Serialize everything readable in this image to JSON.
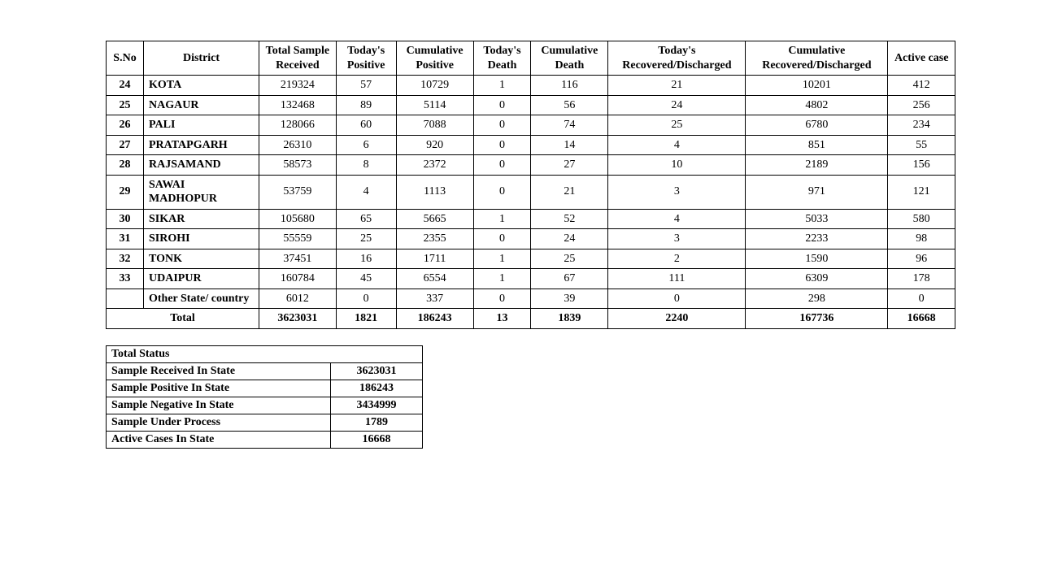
{
  "main_table": {
    "headers": {
      "sno": "S.No",
      "district": "District",
      "sample": "Total Sample Received",
      "tpos": "Today's Positive",
      "cpos": "Cumulative Positive",
      "tdeath": "Today's Death",
      "cdeath": "Cumulative Death",
      "trec": "Today's Recovered/Discharged",
      "crec": "Cumulative Recovered/Discharged",
      "active": "Active case"
    },
    "rows": [
      {
        "sno": "24",
        "district": "KOTA",
        "sample": "219324",
        "tpos": "57",
        "cpos": "10729",
        "tdeath": "1",
        "cdeath": "116",
        "trec": "21",
        "crec": "10201",
        "active": "412"
      },
      {
        "sno": "25",
        "district": "NAGAUR",
        "sample": "132468",
        "tpos": "89",
        "cpos": "5114",
        "tdeath": "0",
        "cdeath": "56",
        "trec": "24",
        "crec": "4802",
        "active": "256"
      },
      {
        "sno": "26",
        "district": "PALI",
        "sample": "128066",
        "tpos": "60",
        "cpos": "7088",
        "tdeath": "0",
        "cdeath": "74",
        "trec": "25",
        "crec": "6780",
        "active": "234"
      },
      {
        "sno": "27",
        "district": "PRATAPGARH",
        "sample": "26310",
        "tpos": "6",
        "cpos": "920",
        "tdeath": "0",
        "cdeath": "14",
        "trec": "4",
        "crec": "851",
        "active": "55"
      },
      {
        "sno": "28",
        "district": "RAJSAMAND",
        "sample": "58573",
        "tpos": "8",
        "cpos": "2372",
        "tdeath": "0",
        "cdeath": "27",
        "trec": "10",
        "crec": "2189",
        "active": "156"
      },
      {
        "sno": "29",
        "district": "SAWAI MADHOPUR",
        "sample": "53759",
        "tpos": "4",
        "cpos": "1113",
        "tdeath": "0",
        "cdeath": "21",
        "trec": "3",
        "crec": "971",
        "active": "121"
      },
      {
        "sno": "30",
        "district": "SIKAR",
        "sample": "105680",
        "tpos": "65",
        "cpos": "5665",
        "tdeath": "1",
        "cdeath": "52",
        "trec": "4",
        "crec": "5033",
        "active": "580"
      },
      {
        "sno": "31",
        "district": "SIROHI",
        "sample": "55559",
        "tpos": "25",
        "cpos": "2355",
        "tdeath": "0",
        "cdeath": "24",
        "trec": "3",
        "crec": "2233",
        "active": "98"
      },
      {
        "sno": "32",
        "district": "TONK",
        "sample": "37451",
        "tpos": "16",
        "cpos": "1711",
        "tdeath": "1",
        "cdeath": "25",
        "trec": "2",
        "crec": "1590",
        "active": "96"
      },
      {
        "sno": "33",
        "district": "UDAIPUR",
        "sample": "160784",
        "tpos": "45",
        "cpos": "6554",
        "tdeath": "1",
        "cdeath": "67",
        "trec": "111",
        "crec": "6309",
        "active": "178"
      },
      {
        "sno": "",
        "district": "Other State/ country",
        "sample": "6012",
        "tpos": "0",
        "cpos": "337",
        "tdeath": "0",
        "cdeath": "39",
        "trec": "0",
        "crec": "298",
        "active": "0"
      }
    ],
    "total": {
      "label": "Total",
      "sample": "3623031",
      "tpos": "1821",
      "cpos": "186243",
      "tdeath": "13",
      "cdeath": "1839",
      "trec": "2240",
      "crec": "167736",
      "active": "16668"
    }
  },
  "status_table": {
    "title": "Total Status",
    "rows": [
      {
        "label": "Sample Received In State",
        "value": "3623031"
      },
      {
        "label": "Sample Positive In State",
        "value": "186243"
      },
      {
        "label": "Sample Negative In State",
        "value": "3434999"
      },
      {
        "label": "Sample Under Process",
        "value": "1789"
      },
      {
        "label": "Active Cases In State",
        "value": "16668"
      }
    ]
  }
}
